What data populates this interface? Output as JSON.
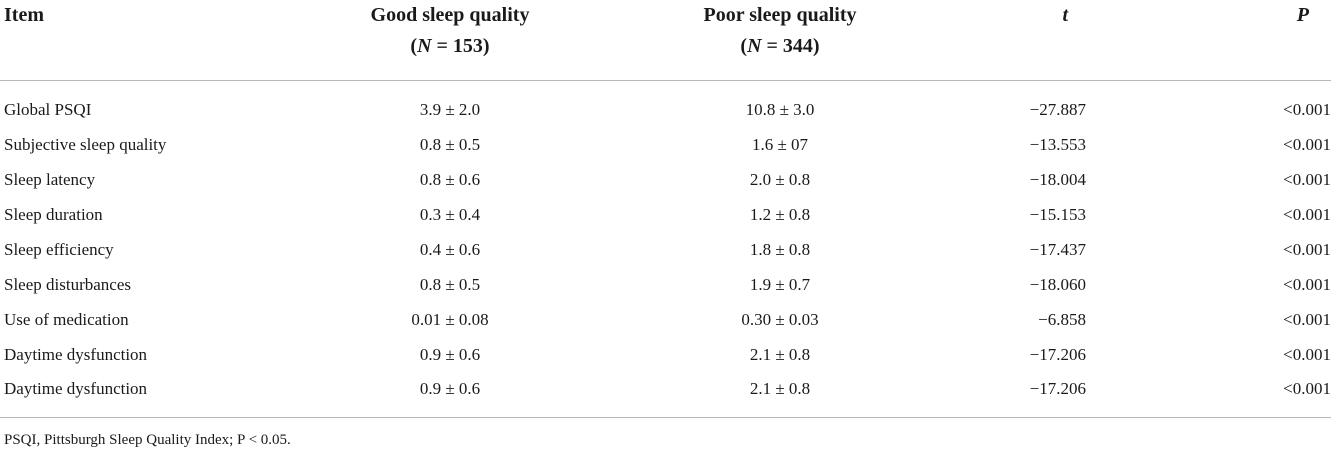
{
  "table": {
    "headers": {
      "item": "Item",
      "good_title": "Good sleep quality",
      "good_n_prefix": "(",
      "good_n_var": "N",
      "good_n_rest": " = 153)",
      "poor_title": "Poor sleep quality",
      "poor_n_prefix": "(",
      "poor_n_var": "N",
      "poor_n_rest": " = 344)",
      "t": "t",
      "p": "P"
    },
    "rows": [
      {
        "item": "Global PSQI",
        "good": "3.9 ± 2.0",
        "poor": "10.8 ± 3.0",
        "t": "−27.887",
        "p": "<0.001"
      },
      {
        "item": "Subjective sleep quality",
        "good": "0.8 ± 0.5",
        "poor": "1.6 ± 07",
        "t": "−13.553",
        "p": "<0.001"
      },
      {
        "item": "Sleep latency",
        "good": "0.8 ± 0.6",
        "poor": "2.0 ± 0.8",
        "t": "−18.004",
        "p": "<0.001"
      },
      {
        "item": "Sleep duration",
        "good": "0.3 ± 0.4",
        "poor": "1.2 ± 0.8",
        "t": "−15.153",
        "p": "<0.001"
      },
      {
        "item": "Sleep efficiency",
        "good": "0.4 ± 0.6",
        "poor": "1.8 ± 0.8",
        "t": "−17.437",
        "p": "<0.001"
      },
      {
        "item": "Sleep disturbances",
        "good": "0.8 ± 0.5",
        "poor": "1.9 ± 0.7",
        "t": "−18.060",
        "p": "<0.001"
      },
      {
        "item": "Use of medication",
        "good": "0.01 ± 0.08",
        "poor": "0.30 ± 0.03",
        "t": "−6.858",
        "p": "<0.001"
      },
      {
        "item": "Daytime dysfunction",
        "good": "0.9 ± 0.6",
        "poor": "2.1 ± 0.8",
        "t": "−17.206",
        "p": "<0.001"
      },
      {
        "item": "Daytime dysfunction",
        "good": "0.9 ± 0.6",
        "poor": "2.1 ± 0.8",
        "t": "−17.206",
        "p": "<0.001"
      }
    ]
  },
  "footnote": "PSQI, Pittsburgh Sleep Quality Index; P < 0.05."
}
